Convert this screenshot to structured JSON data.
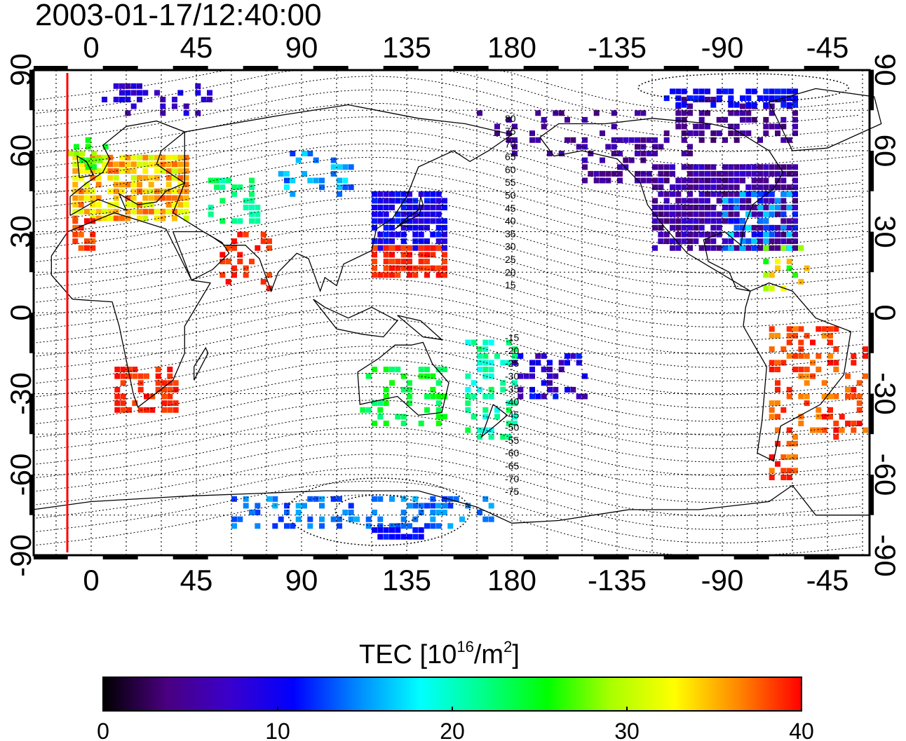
{
  "title": "2003-01-17/12:40:00",
  "lon_ticks": [
    "0",
    "45",
    "90",
    "135",
    "180",
    "-135",
    "-90",
    "-45"
  ],
  "lat_ticks": [
    "90",
    "60",
    "30",
    "0",
    "-30",
    "-60",
    "-90"
  ],
  "geomag_labels": [
    "80",
    "75",
    "70",
    "65",
    "60",
    "55",
    "50",
    "45",
    "40",
    "35",
    "30",
    "25",
    "20",
    "15",
    "-15",
    "-20",
    "-25",
    "-30",
    "-35",
    "-40",
    "-45",
    "-50",
    "-55",
    "-60",
    "-65",
    "-70",
    "-75"
  ],
  "colorbar": {
    "label_main": "TEC  [10",
    "label_sup1": "16",
    "label_mid": "/m",
    "label_sup2": "2",
    "label_end": "]",
    "ticks": [
      "0",
      "10",
      "20",
      "30",
      "40"
    ],
    "min": 0,
    "max": 40,
    "colors": [
      "#000000",
      "#4a0080",
      "#3a00cc",
      "#0000ff",
      "#0088ff",
      "#00ffff",
      "#00ff88",
      "#00ff00",
      "#aaff00",
      "#ffff00",
      "#ff8800",
      "#ff0000"
    ]
  },
  "colors": {
    "frame": "#000000",
    "marker_line": "#ff0000",
    "coast": "#000000",
    "grid": "#000000"
  }
}
